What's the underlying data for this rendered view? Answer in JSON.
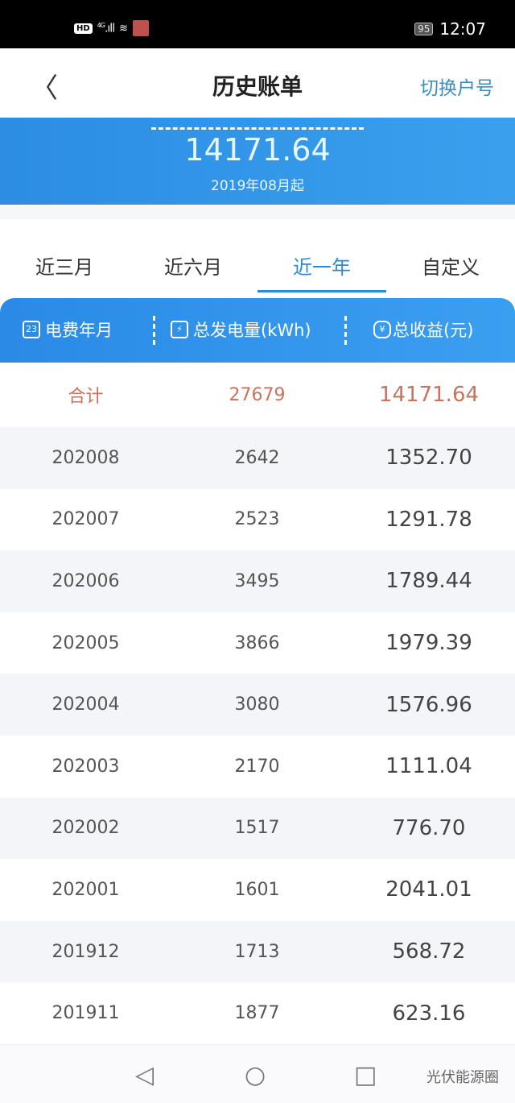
{
  "status_bar": {
    "icons": [
      "hd-icon",
      "4g-signal-icon",
      "wifi-icon",
      "app-avatar-icon"
    ],
    "network": "4G",
    "battery": "95",
    "time": "12:07"
  },
  "header": {
    "back_icon": "chevron-left-icon",
    "title": "历史账单",
    "switch_label": "切换户号"
  },
  "summary": {
    "amount": "14171.64",
    "since": "2019年08月起"
  },
  "tabs": [
    {
      "label": "近三月",
      "active": false
    },
    {
      "label": "近六月",
      "active": false
    },
    {
      "label": "近一年",
      "active": true
    },
    {
      "label": "自定义",
      "active": false
    }
  ],
  "table": {
    "headers": [
      {
        "icon": "calendar-icon",
        "label": "电费年月"
      },
      {
        "icon": "meter-icon",
        "label": "总发电量(kWh)"
      },
      {
        "icon": "yuan-icon",
        "label": "总收益(元)"
      }
    ],
    "total": {
      "label": "合计",
      "energy": "27679",
      "income": "14171.64"
    },
    "rows": [
      {
        "month": "202008",
        "energy": "2642",
        "income": "1352.70"
      },
      {
        "month": "202007",
        "energy": "2523",
        "income": "1291.78"
      },
      {
        "month": "202006",
        "energy": "3495",
        "income": "1789.44"
      },
      {
        "month": "202005",
        "energy": "3866",
        "income": "1979.39"
      },
      {
        "month": "202004",
        "energy": "3080",
        "income": "1576.96"
      },
      {
        "month": "202003",
        "energy": "2170",
        "income": "1111.04"
      },
      {
        "month": "202002",
        "energy": "1517",
        "income": "776.70"
      },
      {
        "month": "202001",
        "energy": "1601",
        "income": "2041.01"
      },
      {
        "month": "201912",
        "energy": "1713",
        "income": "568.72"
      },
      {
        "month": "201911",
        "energy": "1877",
        "income": "623.16"
      }
    ]
  },
  "colors": {
    "accent": "#2b8ad6",
    "total_text": "#c8735e"
  },
  "nav_bar": {
    "icons": [
      "back-triangle-icon",
      "home-circle-icon",
      "recents-square-icon"
    ]
  },
  "watermark": "光伏能源圈"
}
